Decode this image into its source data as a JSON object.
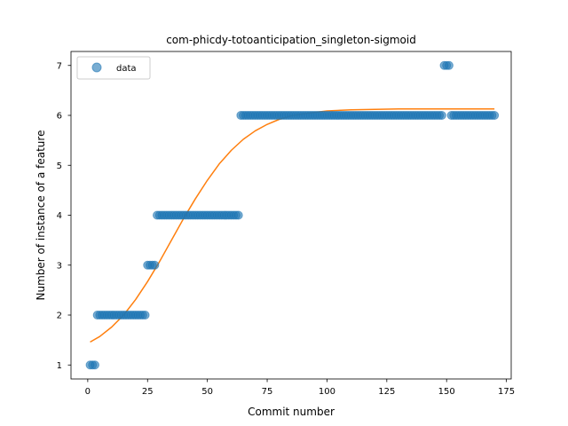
{
  "chart_data": {
    "type": "scatter",
    "title": "com-phicdy-totoanticipation_singleton-sigmoid",
    "xlabel": "Commit number",
    "ylabel": "Number of instance of a feature",
    "xlim": [
      -7,
      177
    ],
    "ylim": [
      0.72,
      7.28
    ],
    "xticks": [
      0,
      25,
      50,
      75,
      100,
      125,
      150,
      175
    ],
    "yticks": [
      1,
      2,
      3,
      4,
      5,
      6,
      7
    ],
    "grid": false,
    "legend": {
      "position": "top-left",
      "entries": [
        "data"
      ]
    },
    "colors": {
      "data": "#1f77b4",
      "fit": "#ff7f0e"
    },
    "series": [
      {
        "name": "data",
        "kind": "points",
        "segments": [
          {
            "x_start": 1,
            "x_end": 3,
            "y": 1
          },
          {
            "x_start": 4,
            "x_end": 24,
            "y": 2
          },
          {
            "x_start": 25,
            "x_end": 28,
            "y": 3
          },
          {
            "x_start": 29,
            "x_end": 63,
            "y": 4
          },
          {
            "x_start": 64,
            "x_end": 148,
            "y": 6
          },
          {
            "x_start": 149,
            "x_end": 151,
            "y": 7
          },
          {
            "x_start": 152,
            "x_end": 170,
            "y": 6
          }
        ]
      },
      {
        "kind": "fitted-curve",
        "x": [
          1,
          5,
          10,
          15,
          20,
          25,
          30,
          35,
          40,
          45,
          50,
          55,
          60,
          65,
          70,
          75,
          80,
          85,
          90,
          95,
          100,
          110,
          120,
          130,
          140,
          150,
          160,
          170
        ],
        "y": [
          1.46,
          1.57,
          1.76,
          2.0,
          2.31,
          2.67,
          3.07,
          3.5,
          3.93,
          4.33,
          4.7,
          5.03,
          5.3,
          5.52,
          5.69,
          5.82,
          5.92,
          5.99,
          6.03,
          6.06,
          6.09,
          6.11,
          6.12,
          6.13,
          6.13,
          6.13,
          6.13,
          6.13
        ]
      }
    ]
  }
}
